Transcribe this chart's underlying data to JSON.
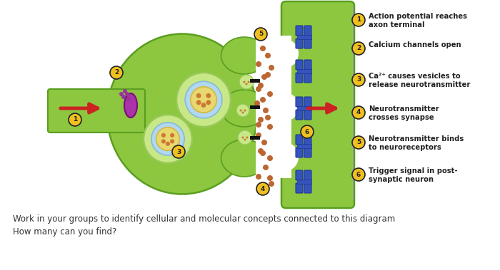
{
  "white_bg": "#ffffff",
  "green_light": "#8dc63f",
  "green_mid": "#72b832",
  "green_dark": "#5a9e20",
  "green_cell": "#a8d870",
  "synapse_white": "#ffffff",
  "vesicle_outer": "#c8e888",
  "vesicle_ring": "#98c858",
  "vesicle_core": "#e8d870",
  "vesicle_core_dark": "#d4b840",
  "vesicle_dot": "#cc7733",
  "receptor_blue": "#3355bb",
  "receptor_dark": "#223399",
  "arrow_red": "#cc2222",
  "ca_purple": "#aa33aa",
  "ca_dot": "#993399",
  "nt_dot": "#bb6633",
  "number_bg": "#f0c020",
  "number_border": "#222222",
  "text_dark": "#222222",
  "bottom_text": "#333333",
  "steps": [
    {
      "num": 1,
      "lines": [
        "Action potential reaches",
        "axon terminal"
      ]
    },
    {
      "num": 2,
      "lines": [
        "Calcium channels open"
      ]
    },
    {
      "num": 3,
      "lines": [
        "Ca²⁺ causes vesicles to",
        "release neurotransmitter"
      ]
    },
    {
      "num": 4,
      "lines": [
        "Neurotransmitter",
        "crosses synapse"
      ]
    },
    {
      "num": 5,
      "lines": [
        "Neurotransmitter binds",
        "to neuroreceptors"
      ]
    },
    {
      "num": 6,
      "lines": [
        "Trigger signal in post-",
        "synaptic neuron"
      ]
    }
  ],
  "footer": [
    "Work in your groups to identify cellular and molecular concepts connected to this diagram",
    "How many can you find?"
  ]
}
